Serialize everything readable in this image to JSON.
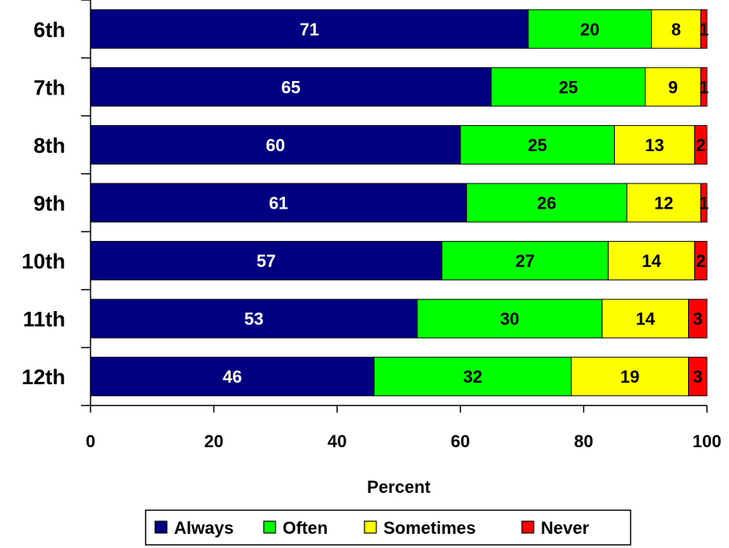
{
  "chart_data": {
    "type": "bar",
    "orientation": "horizontal",
    "stacked": true,
    "categories": [
      "6th",
      "7th",
      "8th",
      "9th",
      "10th",
      "11th",
      "12th"
    ],
    "series": [
      {
        "name": "Always",
        "color": "#000080",
        "label_color": "#ffffff",
        "values": [
          71,
          65,
          60,
          61,
          57,
          53,
          46
        ]
      },
      {
        "name": "Often",
        "color": "#00ff00",
        "label_color": "#000000",
        "values": [
          20,
          25,
          25,
          26,
          27,
          30,
          32
        ]
      },
      {
        "name": "Sometimes",
        "color": "#ffff00",
        "label_color": "#000000",
        "values": [
          8,
          9,
          13,
          12,
          14,
          14,
          19
        ]
      },
      {
        "name": "Never",
        "color": "#ff0000",
        "label_color": "#000000",
        "values": [
          1,
          1,
          2,
          1,
          2,
          3,
          3
        ]
      }
    ],
    "xlabel": "Percent",
    "ylabel": "",
    "xlim": [
      0,
      100
    ],
    "xticks": [
      0,
      20,
      40,
      60,
      80,
      100
    ],
    "grid": false,
    "legend_position": "bottom",
    "data_labels": true
  }
}
